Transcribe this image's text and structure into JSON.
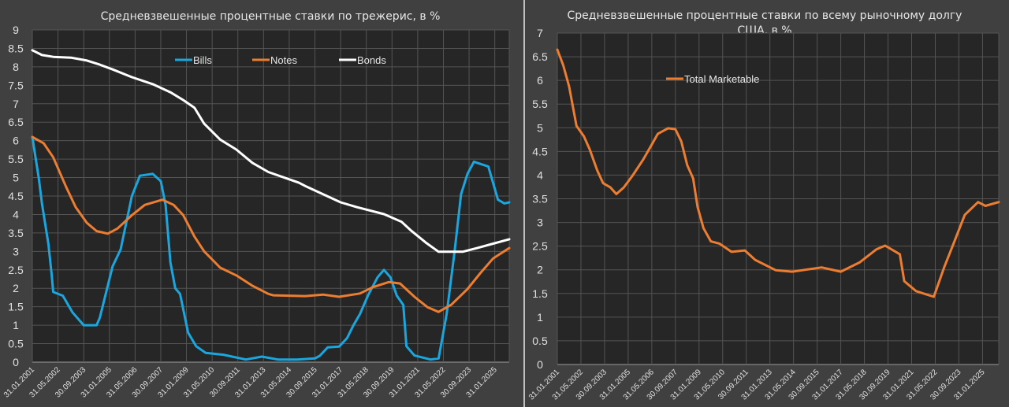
{
  "chart_data": [
    {
      "type": "line",
      "title": "Средневзвешенные процентные ставки по трежерис, в %",
      "xlabel": "",
      "ylabel": "",
      "ylim": [
        0,
        9
      ],
      "ystep": 0.5,
      "xlim": [
        "2001-01",
        "2025-10"
      ],
      "grid": true,
      "legend_position": "top-center",
      "x_tick_labels": [
        "31.01.2001",
        "31.05.2002",
        "30.09.2003",
        "31.01.2005",
        "31.05.2006",
        "30.09.2007",
        "31.01.2009",
        "31.05.2010",
        "30.09.2011",
        "31.01.2013",
        "31.05.2014",
        "30.09.2015",
        "31.01.2017",
        "31.05.2018",
        "30.09.2019",
        "31.01.2021",
        "31.05.2022",
        "30.09.2023",
        "31.01.2025"
      ],
      "series": [
        {
          "name": "Bills",
          "color": "#1aa7e0",
          "points": [
            [
              "2001-01",
              6.1
            ],
            [
              "2001-05",
              5.0
            ],
            [
              "2001-07",
              4.3
            ],
            [
              "2001-11",
              3.2
            ],
            [
              "2002-01",
              2.4
            ],
            [
              "2002-02",
              1.9
            ],
            [
              "2002-08",
              1.8
            ],
            [
              "2003-02",
              1.35
            ],
            [
              "2003-06",
              1.15
            ],
            [
              "2003-09",
              1.0
            ],
            [
              "2004-05",
              1.0
            ],
            [
              "2004-07",
              1.2
            ],
            [
              "2005-03",
              2.6
            ],
            [
              "2005-08",
              3.05
            ],
            [
              "2006-03",
              4.5
            ],
            [
              "2006-08",
              5.05
            ],
            [
              "2007-04",
              5.1
            ],
            [
              "2007-09",
              4.9
            ],
            [
              "2007-12",
              4.25
            ],
            [
              "2008-03",
              2.7
            ],
            [
              "2008-06",
              2.0
            ],
            [
              "2008-09",
              1.85
            ],
            [
              "2009-02",
              0.8
            ],
            [
              "2009-07",
              0.43
            ],
            [
              "2010-01",
              0.25
            ],
            [
              "2010-12",
              0.2
            ],
            [
              "2012-02",
              0.07
            ],
            [
              "2012-12",
              0.15
            ],
            [
              "2013-10",
              0.07
            ],
            [
              "2014-10",
              0.07
            ],
            [
              "2015-09",
              0.1
            ],
            [
              "2015-12",
              0.17
            ],
            [
              "2016-05",
              0.4
            ],
            [
              "2016-12",
              0.42
            ],
            [
              "2017-05",
              0.65
            ],
            [
              "2017-09",
              1.0
            ],
            [
              "2018-01",
              1.3
            ],
            [
              "2018-06",
              1.8
            ],
            [
              "2018-12",
              2.3
            ],
            [
              "2019-04",
              2.5
            ],
            [
              "2019-08",
              2.3
            ],
            [
              "2019-12",
              1.8
            ],
            [
              "2020-04",
              1.55
            ],
            [
              "2020-06",
              0.43
            ],
            [
              "2020-11",
              0.18
            ],
            [
              "2021-09",
              0.07
            ],
            [
              "2022-02",
              0.1
            ],
            [
              "2022-07",
              1.3
            ],
            [
              "2022-12",
              3.0
            ],
            [
              "2023-04",
              4.55
            ],
            [
              "2023-08",
              5.1
            ],
            [
              "2023-12",
              5.43
            ],
            [
              "2024-04",
              5.37
            ],
            [
              "2024-09",
              5.3
            ],
            [
              "2025-03",
              4.4
            ],
            [
              "2025-07",
              4.3
            ],
            [
              "2025-10",
              4.33
            ]
          ]
        },
        {
          "name": "Notes",
          "color": "#ed7d31",
          "points": [
            [
              "2001-01",
              6.1
            ],
            [
              "2001-08",
              5.93
            ],
            [
              "2002-02",
              5.55
            ],
            [
              "2002-10",
              4.75
            ],
            [
              "2003-04",
              4.2
            ],
            [
              "2003-11",
              3.77
            ],
            [
              "2004-05",
              3.55
            ],
            [
              "2004-12",
              3.48
            ],
            [
              "2005-06",
              3.62
            ],
            [
              "2006-03",
              3.98
            ],
            [
              "2006-11",
              4.26
            ],
            [
              "2007-10",
              4.4
            ],
            [
              "2008-05",
              4.26
            ],
            [
              "2008-11",
              3.98
            ],
            [
              "2009-06",
              3.4
            ],
            [
              "2009-12",
              3.0
            ],
            [
              "2010-10",
              2.56
            ],
            [
              "2011-08",
              2.35
            ],
            [
              "2012-06",
              2.07
            ],
            [
              "2013-04",
              1.85
            ],
            [
              "2013-07",
              1.81
            ],
            [
              "2015-03",
              1.79
            ],
            [
              "2016-02",
              1.83
            ],
            [
              "2016-12",
              1.77
            ],
            [
              "2018-01",
              1.86
            ],
            [
              "2018-09",
              2.03
            ],
            [
              "2019-07",
              2.17
            ],
            [
              "2020-02",
              2.13
            ],
            [
              "2020-11",
              1.77
            ],
            [
              "2021-07",
              1.49
            ],
            [
              "2022-02",
              1.36
            ],
            [
              "2022-10",
              1.56
            ],
            [
              "2023-08",
              1.98
            ],
            [
              "2024-04",
              2.41
            ],
            [
              "2024-12",
              2.81
            ],
            [
              "2025-10",
              3.09
            ]
          ]
        },
        {
          "name": "Bonds",
          "color": "#ffffff",
          "points": [
            [
              "2001-01",
              8.45
            ],
            [
              "2001-07",
              8.32
            ],
            [
              "2002-02",
              8.27
            ],
            [
              "2003-01",
              8.25
            ],
            [
              "2003-11",
              8.17
            ],
            [
              "2004-07",
              8.06
            ],
            [
              "2005-03",
              7.93
            ],
            [
              "2006-03",
              7.72
            ],
            [
              "2007-04",
              7.53
            ],
            [
              "2008-03",
              7.31
            ],
            [
              "2008-11",
              7.1
            ],
            [
              "2009-06",
              6.89
            ],
            [
              "2009-12",
              6.46
            ],
            [
              "2010-10",
              6.03
            ],
            [
              "2011-08",
              5.76
            ],
            [
              "2012-06",
              5.4
            ],
            [
              "2013-04",
              5.15
            ],
            [
              "2014-11",
              4.86
            ],
            [
              "2015-04",
              4.75
            ],
            [
              "2017-01",
              4.33
            ],
            [
              "2017-11",
              4.2
            ],
            [
              "2019-04",
              4.01
            ],
            [
              "2020-03",
              3.8
            ],
            [
              "2020-09",
              3.56
            ],
            [
              "2021-06",
              3.24
            ],
            [
              "2022-02",
              2.99
            ],
            [
              "2023-05",
              2.99
            ],
            [
              "2024-02",
              3.09
            ],
            [
              "2024-12",
              3.21
            ],
            [
              "2025-10",
              3.33
            ]
          ]
        }
      ]
    },
    {
      "type": "line",
      "title": "Средневзвешенные процентные ставки по всему рыночному долгу США, в %",
      "title_lines": [
        "Средневзвешенные процентные ставки по всему рыночному долгу",
        "США, в %"
      ],
      "xlabel": "",
      "ylabel": "",
      "ylim": [
        0,
        7
      ],
      "ystep": 0.5,
      "xlim": [
        "2001-01",
        "2025-12"
      ],
      "grid": true,
      "legend_position": "top-left",
      "x_tick_labels": [
        "31.01.2001",
        "31.05.2002",
        "30.09.2003",
        "31.01.2005",
        "31.05.2006",
        "30.09.2007",
        "31.01.2009",
        "31.05.2010",
        "30.09.2011",
        "31.01.2013",
        "31.05.2014",
        "30.09.2015",
        "31.01.2017",
        "31.05.2018",
        "30.09.2019",
        "31.01.2021",
        "31.05.2022",
        "30.09.2023",
        "31.01.2025"
      ],
      "series": [
        {
          "name": "Total Marketable",
          "color": "#ed7d31",
          "points": [
            [
              "2001-01",
              6.65
            ],
            [
              "2001-05",
              6.32
            ],
            [
              "2001-09",
              5.87
            ],
            [
              "2001-12",
              5.37
            ],
            [
              "2002-02",
              5.04
            ],
            [
              "2002-07",
              4.82
            ],
            [
              "2002-11",
              4.54
            ],
            [
              "2003-04",
              4.1
            ],
            [
              "2003-08",
              3.83
            ],
            [
              "2004-01",
              3.74
            ],
            [
              "2004-05",
              3.6
            ],
            [
              "2004-10",
              3.74
            ],
            [
              "2005-04",
              3.99
            ],
            [
              "2005-11",
              4.32
            ],
            [
              "2006-04",
              4.59
            ],
            [
              "2006-09",
              4.87
            ],
            [
              "2007-04",
              4.99
            ],
            [
              "2007-09",
              4.97
            ],
            [
              "2008-01",
              4.71
            ],
            [
              "2008-05",
              4.21
            ],
            [
              "2008-09",
              3.93
            ],
            [
              "2008-12",
              3.33
            ],
            [
              "2009-04",
              2.88
            ],
            [
              "2009-09",
              2.6
            ],
            [
              "2010-03",
              2.55
            ],
            [
              "2010-11",
              2.38
            ],
            [
              "2011-08",
              2.41
            ],
            [
              "2012-03",
              2.21
            ],
            [
              "2013-05",
              1.99
            ],
            [
              "2014-04",
              1.96
            ],
            [
              "2015-12",
              2.05
            ],
            [
              "2017-01",
              1.96
            ],
            [
              "2018-02",
              2.16
            ],
            [
              "2019-01",
              2.43
            ],
            [
              "2019-07",
              2.51
            ],
            [
              "2020-05",
              2.33
            ],
            [
              "2020-08",
              1.76
            ],
            [
              "2021-04",
              1.55
            ],
            [
              "2022-04",
              1.43
            ],
            [
              "2022-11",
              2.05
            ],
            [
              "2023-06",
              2.6
            ],
            [
              "2024-01",
              3.16
            ],
            [
              "2024-10",
              3.43
            ],
            [
              "2025-03",
              3.35
            ],
            [
              "2025-12",
              3.43
            ]
          ]
        }
      ]
    }
  ]
}
